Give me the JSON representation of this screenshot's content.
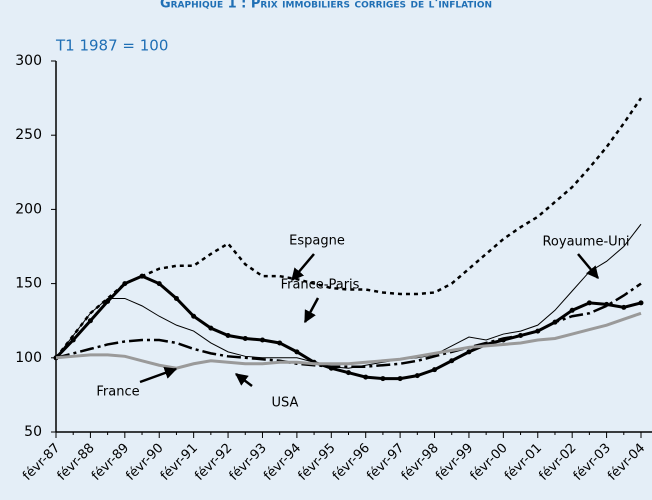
{
  "chart_data": {
    "type": "line",
    "title": "Graphique 1 : Prix immobiliers corrigés de l'inflation",
    "subtitle": "T1 1987 = 100",
    "categories": [
      "févr-87",
      null,
      "févr-88",
      null,
      "févr-89",
      null,
      "févr-90",
      null,
      "févr-91",
      null,
      "févr-92",
      null,
      "févr-93",
      null,
      "févr-94",
      null,
      "févr-95",
      null,
      "févr-96",
      null,
      "févr-97",
      null,
      "févr-98",
      null,
      "févr-99",
      null,
      "févr-00",
      null,
      "févr-01",
      null,
      "févr-02",
      null,
      "févr-03",
      null,
      "févr-04"
    ],
    "ylim": [
      50,
      300
    ],
    "yticks": [
      50,
      100,
      150,
      200,
      250,
      300
    ],
    "series": [
      {
        "name": "Espagne",
        "color": "#000000",
        "dash": "dotted",
        "values": [
          100,
          115,
          130,
          140,
          150,
          155,
          160,
          162,
          162,
          170,
          177,
          163,
          155,
          155,
          153,
          150,
          147,
          146,
          146,
          144,
          143,
          143,
          144,
          150,
          160,
          170,
          180,
          188,
          195,
          205,
          215,
          228,
          242,
          258,
          275
        ]
      },
      {
        "name": "Royaume-Uni",
        "color": "#000000",
        "dash": "solid",
        "values": [
          100,
          115,
          130,
          140,
          140,
          135,
          128,
          122,
          118,
          110,
          104,
          101,
          100,
          100,
          100,
          97,
          94,
          93,
          95,
          97,
          99,
          100,
          102,
          108,
          114,
          112,
          116,
          118,
          122,
          132,
          145,
          158,
          165,
          175,
          190
        ]
      },
      {
        "name": "France-Paris",
        "color": "#000000",
        "dash": "markers",
        "values": [
          100,
          112,
          125,
          138,
          150,
          155,
          150,
          140,
          128,
          120,
          115,
          113,
          112,
          110,
          104,
          97,
          93,
          90,
          87,
          86,
          86,
          88,
          92,
          98,
          104,
          109,
          112,
          115,
          118,
          124,
          132,
          137,
          136,
          134,
          137
        ]
      },
      {
        "name": "France",
        "color": "#000000",
        "dash": "dashdot",
        "values": [
          100,
          103,
          106,
          109,
          111,
          112,
          112,
          110,
          106,
          103,
          101,
          100,
          99,
          98,
          96,
          95,
          94,
          94,
          94,
          95,
          96,
          98,
          101,
          104,
          107,
          110,
          113,
          115,
          118,
          124,
          128,
          130,
          135,
          142,
          150
        ]
      },
      {
        "name": "USA",
        "color": "#9a9a9a",
        "dash": "thick",
        "values": [
          100,
          101,
          102,
          102,
          101,
          98,
          95,
          93,
          96,
          98,
          97,
          96,
          96,
          97,
          97,
          96,
          96,
          96,
          97,
          98,
          99,
          101,
          103,
          105,
          107,
          108,
          109,
          110,
          112,
          113,
          116,
          119,
          122,
          126,
          130
        ]
      }
    ]
  }
}
